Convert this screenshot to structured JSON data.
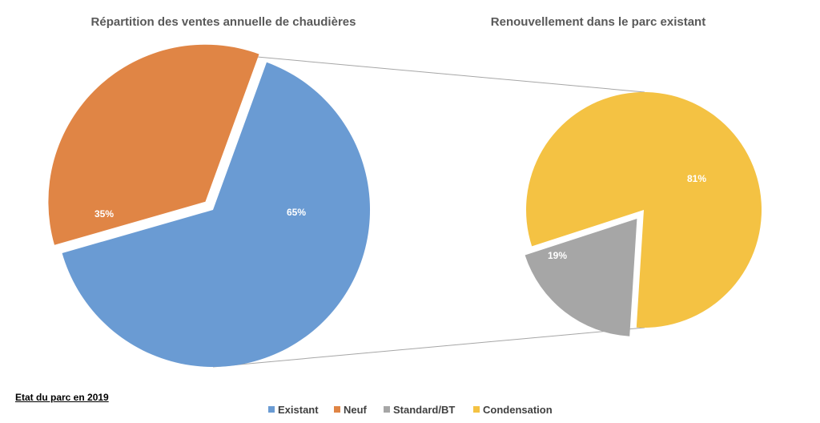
{
  "footnote": "Etat du parc en 2019",
  "colors": {
    "Existant": "#6a9bd3",
    "Neuf": "#e08545",
    "Standard/BT": "#a6a6a6",
    "Condensation": "#f4c243",
    "connector": "#a6a6a6",
    "title": "#595959"
  },
  "chart_data": [
    {
      "type": "pie",
      "title": "Répartition des ventes annuelle de chaudières",
      "categories": [
        "Existant",
        "Neuf"
      ],
      "values": [
        65,
        35
      ],
      "labels": [
        "65%",
        "35%"
      ],
      "exploded": "Neuf"
    },
    {
      "type": "pie",
      "title": "Renouvellement dans le parc existant",
      "categories": [
        "Condensation",
        "Standard/BT"
      ],
      "values": [
        81,
        19
      ],
      "labels": [
        "81%",
        "19%"
      ],
      "exploded": "Standard/BT"
    }
  ],
  "legend": [
    "Existant",
    "Neuf",
    "Standard/BT",
    "Condensation"
  ]
}
